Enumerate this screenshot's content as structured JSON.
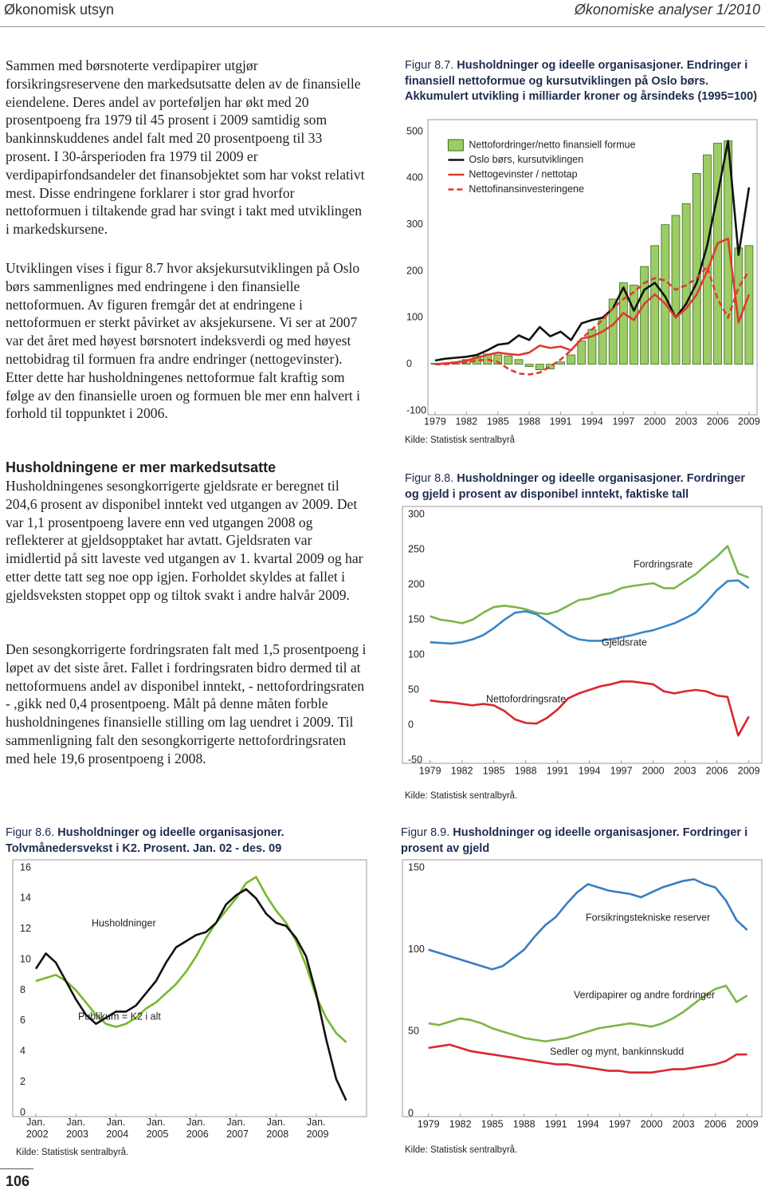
{
  "header": {
    "left": "Økonomisk utsyn",
    "right": "Økonomiske analyser 1/2010"
  },
  "paragraphs": [
    "Sammen med børsnoterte verdipapirer utgjør forsikringsreservene den markedsutsatte delen av de finansielle eiendelene. Deres andel av porteføljen har økt med 20 prosentpoeng fra 1979 til 45 prosent i 2009 samtidig som bankinnskuddenes andel falt med 20 prosentpoeng til 33 prosent. I 30-årsperioden fra 1979 til 2009 er verdipapirfondsandeler det finansobjektet som har vokst relativt mest. Disse endringene forklarer i stor grad hvorfor nettoformuen i tiltakende grad har svingt i takt med utviklingen i markedskursene.",
    "Utviklingen vises i figur 8.7 hvor aksjekursutviklingen på Oslo børs sammenlignes med endringene i den finansielle nettoformuen. Av figuren fremgår det at endringene i nettoformuen er sterkt påvirket av aksjekursene. Vi ser at 2007 var det året med høyest børsnotert indeksverdi og med høyest nettobidrag til formuen fra andre endringer (nettogevinster). Etter dette har husholdningenes nettoformue falt kraftig som følge av den finansielle uroen og formuen ble mer enn halvert i forhold til toppunktet i 2006."
  ],
  "section": {
    "heading": "Husholdningene er mer markedsutsatte",
    "paragraphs": [
      "Husholdningenes sesongkorrigerte gjeldsrate er beregnet til 204,6 prosent av disponibel inntekt ved utgangen av 2009. Det var 1,1 prosentpoeng lavere enn ved utgangen 2008 og reflekterer at gjeldsopptaket har avtatt. Gjeldsraten var imidlertid på sitt laveste ved utgangen av 1. kvartal 2009 og har etter dette tatt seg noe opp igjen. Forholdet skyldes at fallet i gjeldsveksten stoppet opp og tiltok svakt i andre halvår 2009.",
      "Den sesongkorrigerte fordringsraten falt med 1,5 prosentpoeng i løpet av det siste året. Fallet i fordringsraten bidro dermed til at nettoformuens andel av disponibel inntekt, - nettofordringsraten - ,gikk ned 0,4 prosentpoeng. Målt på denne måten forble husholdningenes finansielle stilling om lag uendret i 2009. Til sammenligning falt den sesongkorrigerte nettofordringsraten med hele 19,6 prosentpoeng i 2008."
    ]
  },
  "page_number": "106",
  "chart_data": [
    {
      "type": "bar",
      "figure": "Figur 8.7.",
      "title": "Husholdninger og ideelle organisasjoner.",
      "subtitle": "Endringer i finansiell nettoformue og kursutviklingen på Oslo børs. Akkumulert utvikling i milliarder kroner og årsindeks (1995=100)",
      "x": [
        1979,
        1980,
        1981,
        1982,
        1983,
        1984,
        1985,
        1986,
        1987,
        1988,
        1989,
        1990,
        1991,
        1992,
        1993,
        1994,
        1995,
        1996,
        1997,
        1998,
        1999,
        2000,
        2001,
        2002,
        2003,
        2004,
        2005,
        2006,
        2007,
        2008,
        2009
      ],
      "xlim": [
        1978.5,
        2009.5
      ],
      "xticks": [
        1979,
        1982,
        1985,
        1988,
        1991,
        1994,
        1997,
        2000,
        2003,
        2006,
        2009
      ],
      "ylim": [
        -100,
        500
      ],
      "yticks": [
        -100,
        0,
        100,
        200,
        300,
        400,
        500
      ],
      "grid": false,
      "legend": "upper left",
      "series": [
        {
          "name": "Nettofordringer/netto finansiell formue",
          "type": "bar",
          "color": "#9ccc65",
          "values": [
            2,
            3,
            5,
            10,
            18,
            22,
            20,
            18,
            10,
            -5,
            -12,
            -10,
            5,
            20,
            50,
            75,
            100,
            140,
            175,
            170,
            210,
            255,
            300,
            320,
            345,
            410,
            450,
            475,
            480,
            250,
            255
          ]
        },
        {
          "name": "Oslo børs, kursutviklingen",
          "type": "line",
          "color": "#111111",
          "values": [
            8,
            12,
            14,
            16,
            20,
            30,
            42,
            45,
            62,
            52,
            80,
            60,
            70,
            52,
            88,
            95,
            100,
            120,
            165,
            115,
            160,
            175,
            145,
            100,
            130,
            175,
            255,
            365,
            480,
            235,
            380
          ]
        },
        {
          "name": "Nettogevinster / nettotap",
          "type": "line",
          "color": "#e03a2f",
          "values": [
            0,
            2,
            4,
            8,
            14,
            20,
            25,
            22,
            20,
            25,
            40,
            35,
            38,
            30,
            55,
            60,
            70,
            85,
            110,
            95,
            130,
            150,
            130,
            100,
            120,
            150,
            200,
            260,
            270,
            90,
            150
          ]
        },
        {
          "name": "Nettofinansinvesteringene",
          "type": "line",
          "dash": true,
          "color": "#e03a2f",
          "values": [
            0,
            0,
            2,
            4,
            8,
            10,
            5,
            -10,
            -20,
            -22,
            -18,
            -5,
            10,
            30,
            55,
            75,
            95,
            120,
            140,
            155,
            175,
            185,
            180,
            160,
            170,
            185,
            210,
            140,
            100,
            165,
            200
          ]
        }
      ],
      "source": "Kilde: Statistisk sentralbyrå"
    },
    {
      "type": "line",
      "figure": "Figur 8.8.",
      "title": "Husholdninger og ideelle organisasjoner.",
      "subtitle": "Fordringer og gjeld i prosent av disponibel inntekt, faktiske tall",
      "x": [
        1979,
        1980,
        1981,
        1982,
        1983,
        1984,
        1985,
        1986,
        1987,
        1988,
        1989,
        1990,
        1991,
        1992,
        1993,
        1994,
        1995,
        1996,
        1997,
        1998,
        1999,
        2000,
        2001,
        2002,
        2003,
        2004,
        2005,
        2006,
        2007,
        2008,
        2009
      ],
      "xlim": [
        1978.5,
        2010
      ],
      "xticks": [
        1979,
        1982,
        1985,
        1988,
        1991,
        1994,
        1997,
        2000,
        2003,
        2006,
        2009
      ],
      "ylim": [
        -50,
        300
      ],
      "yticks": [
        -50,
        0,
        50,
        100,
        150,
        200,
        250,
        300
      ],
      "grid": false,
      "series": [
        {
          "name": "Fordringsrate",
          "color": "#7ab648",
          "values": [
            155,
            150,
            148,
            145,
            150,
            160,
            168,
            170,
            168,
            165,
            160,
            158,
            162,
            170,
            178,
            180,
            185,
            188,
            195,
            198,
            200,
            202,
            195,
            195,
            205,
            215,
            228,
            240,
            255,
            216,
            210
          ]
        },
        {
          "name": "Gjeldsrate",
          "color": "#3a86c8",
          "values": [
            118,
            117,
            116,
            118,
            122,
            128,
            138,
            150,
            160,
            162,
            158,
            148,
            138,
            128,
            122,
            120,
            120,
            122,
            125,
            128,
            132,
            135,
            140,
            145,
            152,
            160,
            175,
            192,
            205,
            206,
            195
          ]
        },
        {
          "name": "Nettofordringsrate",
          "color": "#d9272e",
          "values": [
            35,
            33,
            32,
            30,
            28,
            30,
            28,
            20,
            8,
            3,
            2,
            10,
            22,
            38,
            45,
            50,
            55,
            58,
            62,
            62,
            60,
            58,
            48,
            45,
            48,
            50,
            48,
            42,
            40,
            -15,
            12
          ]
        }
      ],
      "source": "Kilde: Statistisk sentralbyrå."
    },
    {
      "type": "line",
      "figure": "Figur 8.6.",
      "title": "Husholdninger og ideelle organisasjoner.",
      "subtitle": "Tolvmånedersvekst i K2. Prosent. Jan. 02 - des. 09",
      "x": [
        2002,
        2002.25,
        2002.5,
        2002.75,
        2003,
        2003.25,
        2003.5,
        2003.75,
        2004,
        2004.25,
        2004.5,
        2004.75,
        2005,
        2005.25,
        2005.5,
        2005.75,
        2006,
        2006.25,
        2006.5,
        2006.75,
        2007,
        2007.25,
        2007.5,
        2007.75,
        2008,
        2008.25,
        2008.5,
        2008.75,
        2009,
        2009.25,
        2009.5,
        2009.75
      ],
      "xlim": [
        2002,
        2010
      ],
      "xticks": [
        {
          "value": 2002,
          "label": "Jan. 2002"
        },
        {
          "value": 2003,
          "label": "Jan. 2003"
        },
        {
          "value": 2004,
          "label": "Jan. 2004"
        },
        {
          "value": 2005,
          "label": "Jan. 2005"
        },
        {
          "value": 2006,
          "label": "Jan. 2006"
        },
        {
          "value": 2007,
          "label": "Jan. 2007"
        },
        {
          "value": 2008,
          "label": "Jan. 2008"
        },
        {
          "value": 2009,
          "label": "Jan. 2009"
        }
      ],
      "ylim": [
        0,
        16
      ],
      "yticks": [
        0,
        2,
        4,
        6,
        8,
        10,
        12,
        14,
        16
      ],
      "grid": false,
      "series": [
        {
          "name": "Husholdninger",
          "color": "#76b82a",
          "values": [
            8.6,
            8.8,
            9.0,
            8.6,
            8.0,
            7.2,
            6.4,
            5.8,
            5.6,
            5.8,
            6.2,
            6.8,
            7.2,
            7.8,
            8.4,
            9.2,
            10.2,
            11.4,
            12.4,
            13.2,
            14.0,
            15.0,
            15.4,
            14.2,
            13.2,
            12.4,
            11.2,
            9.6,
            7.6,
            6.2,
            5.2,
            4.6
          ]
        },
        {
          "name": "Publikum = K2 i alt",
          "color": "#111111",
          "values": [
            9.4,
            10.4,
            9.8,
            8.6,
            7.4,
            6.4,
            5.8,
            6.2,
            6.6,
            6.6,
            7.0,
            7.8,
            8.6,
            9.8,
            10.8,
            11.2,
            11.6,
            11.8,
            12.4,
            13.6,
            14.2,
            14.6,
            14.0,
            13.0,
            12.4,
            12.2,
            11.4,
            10.2,
            7.8,
            4.8,
            2.2,
            0.8
          ]
        }
      ],
      "source": "Kilde: Statistisk sentralbyrå."
    },
    {
      "type": "line",
      "figure": "Figur 8.9.",
      "title": "Husholdninger og ideelle organisasjoner.",
      "subtitle": "Fordringer i prosent av gjeld",
      "x": [
        1979,
        1980,
        1981,
        1982,
        1983,
        1984,
        1985,
        1986,
        1987,
        1988,
        1989,
        1990,
        1991,
        1992,
        1993,
        1994,
        1995,
        1996,
        1997,
        1998,
        1999,
        2000,
        2001,
        2002,
        2003,
        2004,
        2005,
        2006,
        2007,
        2008,
        2009
      ],
      "xlim": [
        1978.5,
        2010
      ],
      "xticks": [
        1979,
        1982,
        1985,
        1988,
        1991,
        1994,
        1997,
        2000,
        2003,
        2006,
        2009
      ],
      "ylim": [
        0,
        150
      ],
      "yticks": [
        0,
        50,
        100,
        150
      ],
      "grid": false,
      "series": [
        {
          "name": "Forsikringstekniske reserver",
          "color": "#3a7cc0",
          "values": [
            100,
            98,
            96,
            94,
            92,
            90,
            88,
            90,
            95,
            100,
            108,
            115,
            120,
            128,
            135,
            140,
            138,
            136,
            135,
            134,
            132,
            135,
            138,
            140,
            142,
            143,
            140,
            138,
            130,
            118,
            112
          ]
        },
        {
          "name": "Verdipapirer og andre fordringer",
          "color": "#7ab648",
          "values": [
            55,
            54,
            56,
            58,
            57,
            55,
            52,
            50,
            48,
            46,
            45,
            44,
            45,
            46,
            48,
            50,
            52,
            53,
            54,
            55,
            54,
            53,
            55,
            58,
            62,
            67,
            72,
            76,
            78,
            68,
            72
          ]
        },
        {
          "name": "Sedler og mynt, bankinnskudd",
          "color": "#d9272e",
          "values": [
            40,
            41,
            42,
            40,
            38,
            37,
            36,
            35,
            34,
            33,
            32,
            31,
            30,
            30,
            29,
            28,
            27,
            26,
            26,
            25,
            25,
            25,
            26,
            27,
            27,
            28,
            29,
            30,
            32,
            36,
            36
          ]
        }
      ],
      "source": "Kilde: Statistisk sentralbyrå."
    }
  ]
}
